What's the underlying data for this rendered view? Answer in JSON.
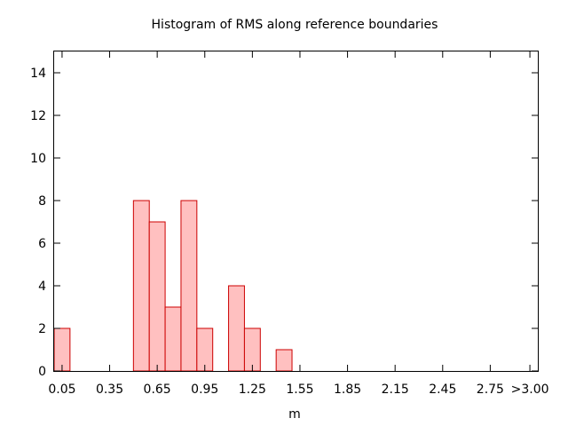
{
  "chart_data": {
    "type": "bar",
    "title": "Histogram of RMS along reference boundaries",
    "xlabel": "m",
    "ylabel": "",
    "xlim": [
      0.0,
      3.05
    ],
    "ylim": [
      0,
      15
    ],
    "x_tick_labels": [
      "0.05",
      "0.35",
      "0.65",
      "0.95",
      "1.25",
      "1.55",
      "1.85",
      "2.15",
      "2.45",
      "2.75",
      ">3.00"
    ],
    "x_tick_values": [
      0.05,
      0.35,
      0.65,
      0.95,
      1.25,
      1.55,
      1.85,
      2.15,
      2.45,
      2.75,
      3.0
    ],
    "y_ticks": [
      0,
      2,
      4,
      6,
      8,
      10,
      12,
      14
    ],
    "bin_width": 0.1,
    "bins": [
      {
        "x": 0.05,
        "count": 2
      },
      {
        "x": 0.55,
        "count": 8
      },
      {
        "x": 0.65,
        "count": 7
      },
      {
        "x": 0.75,
        "count": 3
      },
      {
        "x": 0.85,
        "count": 8
      },
      {
        "x": 0.95,
        "count": 2
      },
      {
        "x": 1.15,
        "count": 4
      },
      {
        "x": 1.25,
        "count": 2
      },
      {
        "x": 1.45,
        "count": 1
      }
    ],
    "bar_fill": "#ffc0c0",
    "bar_stroke": "#cc0000",
    "grid": false,
    "legend": "none"
  }
}
